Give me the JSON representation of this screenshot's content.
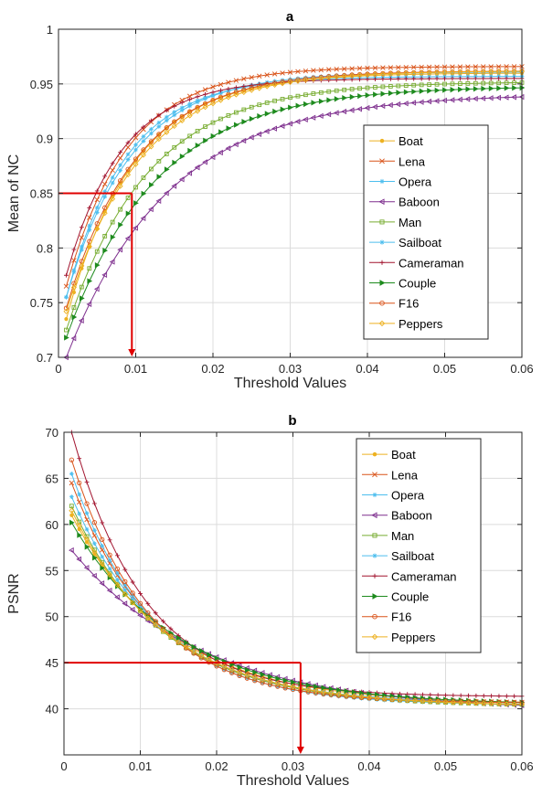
{
  "chart_data": [
    {
      "type": "line",
      "title": "a",
      "xlabel": "Threshold Values",
      "ylabel": "Mean of NC",
      "xlim": [
        0,
        0.06
      ],
      "ylim": [
        0.7,
        1
      ],
      "xticks": [
        0,
        0.01,
        0.02,
        0.03,
        0.04,
        0.05,
        0.06
      ],
      "xtick_labels": [
        "0",
        "0.01",
        "0.02",
        "0.03",
        "0.04",
        "0.05",
        "0.06"
      ],
      "yticks": [
        0.7,
        0.75,
        0.8,
        0.85,
        0.9,
        0.95,
        1
      ],
      "ytick_labels": [
        "0.7",
        "0.75",
        "0.8",
        "0.85",
        "0.9",
        "0.95",
        "1"
      ],
      "grid": true,
      "legend_position": "right",
      "x_range": [
        0.001,
        0.06
      ],
      "n_points": 60,
      "series": [
        {
          "name": "Boat",
          "color": "#EDB120",
          "marker": "dot",
          "start": 0.735,
          "end": 0.96,
          "rate": 115
        },
        {
          "name": "Lena",
          "color": "#D95319",
          "marker": "x",
          "start": 0.765,
          "end": 0.966,
          "rate": 125
        },
        {
          "name": "Opera",
          "color": "#4DBEEE",
          "marker": "star",
          "start": 0.755,
          "end": 0.961,
          "rate": 118
        },
        {
          "name": "Baboon",
          "color": "#7E2F8E",
          "marker": "triangle-left",
          "start": 0.7,
          "end": 0.941,
          "rate": 75
        },
        {
          "name": "Man",
          "color": "#77AC30",
          "marker": "square",
          "start": 0.725,
          "end": 0.952,
          "rate": 95
        },
        {
          "name": "Sailboat",
          "color": "#4DBEEE",
          "marker": "star",
          "start": 0.755,
          "end": 0.957,
          "rate": 130
        },
        {
          "name": "Cameraman",
          "color": "#A2142F",
          "marker": "plus",
          "start": 0.775,
          "end": 0.955,
          "rate": 140
        },
        {
          "name": "Couple",
          "color": "#1E8B1E",
          "marker": "triangle-right",
          "start": 0.718,
          "end": 0.948,
          "rate": 85
        },
        {
          "name": "F16",
          "color": "#D95319",
          "marker": "circle",
          "start": 0.745,
          "end": 0.962,
          "rate": 110
        },
        {
          "name": "Peppers",
          "color": "#EDB120",
          "marker": "diamond",
          "start": 0.742,
          "end": 0.962,
          "rate": 105
        }
      ],
      "annotation": {
        "x": 0.0095,
        "y": 0.85,
        "color": "#E00000"
      }
    },
    {
      "type": "line",
      "title": "b",
      "xlabel": "Threshold Values",
      "ylabel": "PSNR",
      "xlim": [
        0,
        0.06
      ],
      "ylim": [
        35,
        70
      ],
      "xticks": [
        0,
        0.01,
        0.02,
        0.03,
        0.04,
        0.05,
        0.06
      ],
      "xtick_labels": [
        "0",
        "0.01",
        "0.02",
        "0.03",
        "0.04",
        "0.05",
        "0.06"
      ],
      "yticks": [
        40,
        45,
        50,
        55,
        60,
        65,
        70
      ],
      "ytick_labels": [
        "40",
        "45",
        "50",
        "55",
        "60",
        "65",
        "70"
      ],
      "grid": true,
      "legend_position": "top-right",
      "x_range": [
        0.001,
        0.06
      ],
      "n_points": 60,
      "series": [
        {
          "name": "Boat",
          "color": "#EDB120",
          "marker": "dot",
          "start": 61.0,
          "end": 40.5,
          "k": 14.0
        },
        {
          "name": "Lena",
          "color": "#D95319",
          "marker": "x",
          "start": 64.5,
          "end": 40.6,
          "k": 16.5
        },
        {
          "name": "Opera",
          "color": "#4DBEEE",
          "marker": "star",
          "start": 65.5,
          "end": 40.4,
          "k": 17.0
        },
        {
          "name": "Baboon",
          "color": "#7E2F8E",
          "marker": "triangle-left",
          "start": 57.2,
          "end": 39.8,
          "k": 10.5
        },
        {
          "name": "Man",
          "color": "#77AC30",
          "marker": "square",
          "start": 62.0,
          "end": 40.3,
          "k": 15.0
        },
        {
          "name": "Sailboat",
          "color": "#4DBEEE",
          "marker": "star",
          "start": 63.0,
          "end": 40.5,
          "k": 15.5
        },
        {
          "name": "Cameraman",
          "color": "#A2142F",
          "marker": "plus",
          "start": 70.0,
          "end": 41.3,
          "k": 19.0
        },
        {
          "name": "Couple",
          "color": "#1E8B1E",
          "marker": "triangle-right",
          "start": 60.2,
          "end": 40.4,
          "k": 13.0
        },
        {
          "name": "F16",
          "color": "#D95319",
          "marker": "circle",
          "start": 67.0,
          "end": 40.6,
          "k": 18.0
        },
        {
          "name": "Peppers",
          "color": "#EDB120",
          "marker": "diamond",
          "start": 61.5,
          "end": 40.3,
          "k": 14.5
        }
      ],
      "annotation": {
        "x": 0.031,
        "y": 45,
        "color": "#E00000"
      }
    }
  ]
}
